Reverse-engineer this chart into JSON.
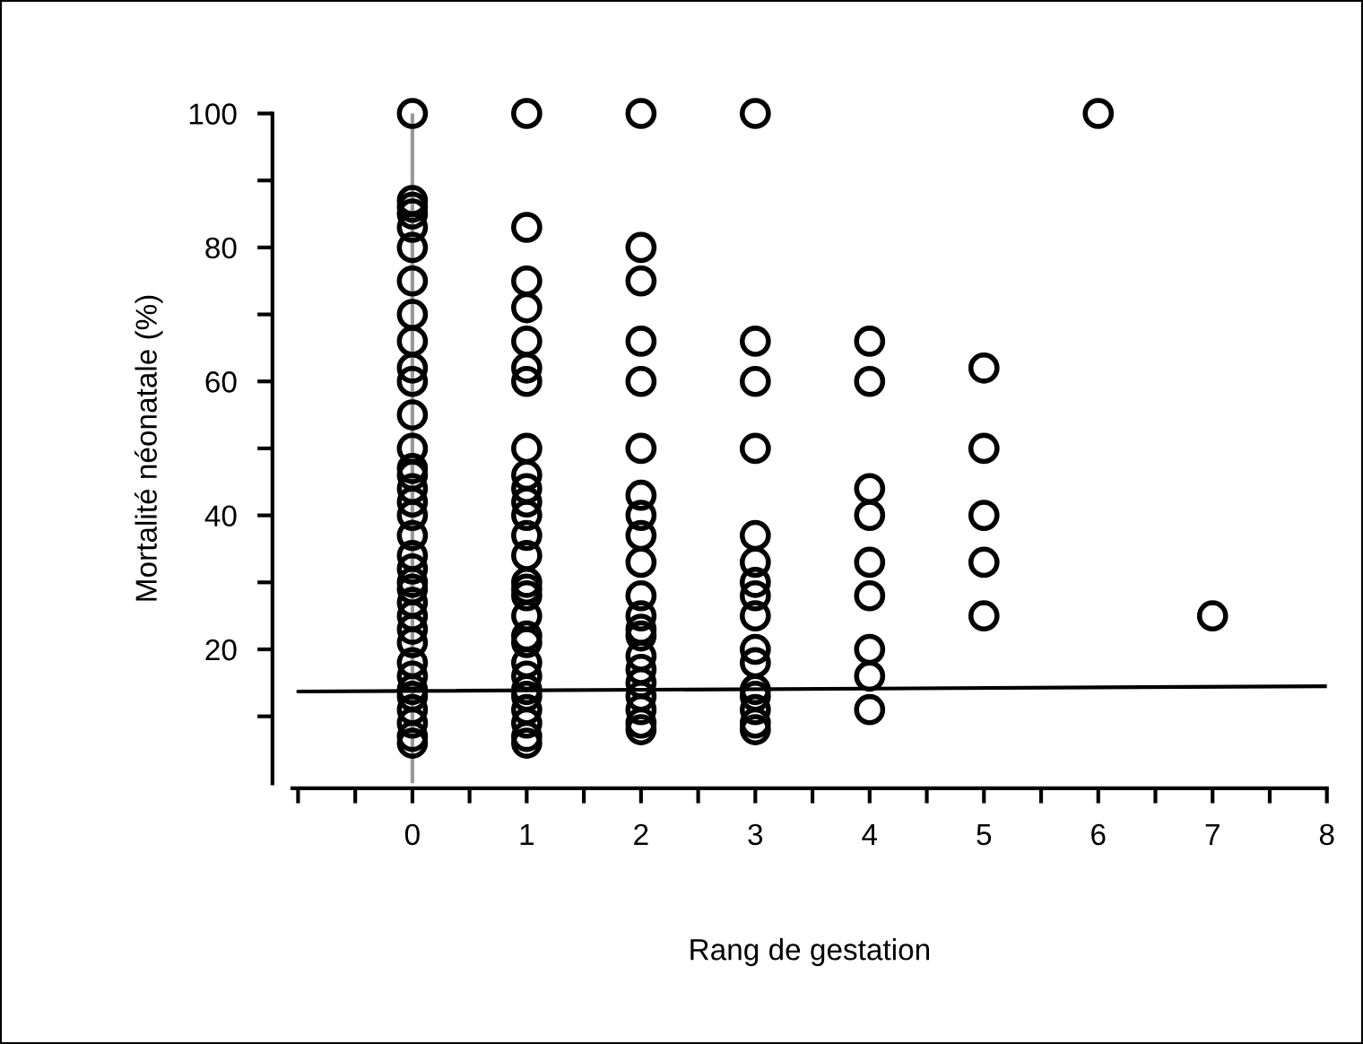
{
  "chart_data": {
    "type": "scatter",
    "xlabel": "Rang de gestation",
    "ylabel": "Mortalité néonatale (%)",
    "xlim": [
      -1.05,
      8
    ],
    "ylim": [
      0,
      100
    ],
    "xticks": [
      {
        "value": -1,
        "label": null
      },
      {
        "value": -0.5,
        "label": null
      },
      0,
      {
        "value": 0.5,
        "label": null
      },
      1,
      {
        "value": 1.5,
        "label": null
      },
      2,
      {
        "value": 2.5,
        "label": null
      },
      3,
      {
        "value": 3.5,
        "label": null
      },
      4,
      {
        "value": 4.5,
        "label": null
      },
      5,
      {
        "value": 5.5,
        "label": null
      },
      6,
      {
        "value": 6.5,
        "label": null
      },
      7,
      {
        "value": 7.5,
        "label": null
      },
      8
    ],
    "yticks": [
      {
        "value": 10,
        "label": null
      },
      20,
      {
        "value": 30,
        "label": null
      },
      40,
      {
        "value": 50,
        "label": null
      },
      60,
      {
        "value": 70,
        "label": null
      },
      80,
      {
        "value": 90,
        "label": null
      },
      100
    ],
    "marker": "circle",
    "grid": false,
    "legend": false,
    "ref_lines": [
      {
        "axis": "x",
        "value": 0,
        "color": "#999999"
      }
    ],
    "series": [
      {
        "color": "#000000",
        "x": [
          0,
          0,
          0,
          0,
          0,
          0,
          0,
          0,
          0,
          0,
          0,
          0,
          0,
          0,
          0,
          0,
          0,
          0,
          0,
          0,
          0,
          0,
          0,
          0,
          0,
          0,
          0,
          0,
          0,
          0,
          0,
          0,
          0,
          0,
          0,
          1,
          1,
          1,
          1,
          1,
          1,
          1,
          1,
          1,
          1,
          1,
          1,
          1,
          1,
          1,
          1,
          1,
          1,
          1,
          1,
          1,
          1,
          1,
          1,
          1,
          1,
          1,
          1,
          2,
          2,
          2,
          2,
          2,
          2,
          2,
          2,
          2,
          2,
          2,
          2,
          2,
          2,
          2,
          2,
          2,
          2,
          2,
          2,
          2,
          3,
          3,
          3,
          3,
          3,
          3,
          3,
          3,
          3,
          3,
          3,
          3,
          3,
          3,
          3,
          3,
          4,
          4,
          4,
          4,
          4,
          4,
          4,
          4,
          4,
          5,
          5,
          5,
          5,
          5,
          6,
          7
        ],
        "values": [
          100,
          87,
          86,
          85,
          83,
          80,
          75,
          70,
          66,
          62,
          60,
          55,
          50,
          47,
          46,
          44,
          42,
          40,
          37,
          34,
          32,
          30,
          29,
          27,
          25,
          23,
          21,
          18,
          16,
          14,
          13,
          11,
          9,
          7,
          6,
          100,
          83,
          75,
          71,
          66,
          62,
          60,
          50,
          46,
          44,
          42,
          40,
          37,
          34,
          30,
          29,
          28,
          25,
          22,
          21,
          18,
          16,
          14,
          13,
          11,
          9,
          7,
          6,
          100,
          80,
          75,
          66,
          60,
          50,
          43,
          40,
          37,
          33,
          28,
          25,
          23,
          22,
          19,
          17,
          15,
          13,
          11,
          9,
          8,
          100,
          66,
          60,
          50,
          37,
          33,
          30,
          28,
          25,
          20,
          18,
          14,
          13,
          11,
          9,
          8,
          66,
          60,
          44,
          40,
          33,
          28,
          20,
          16,
          11,
          62,
          50,
          40,
          33,
          25,
          100,
          25
        ]
      },
      {
        "type": "line",
        "color": "#000000",
        "marker": "none",
        "x": [
          -1,
          8
        ],
        "values": [
          13.7,
          14.5
        ]
      }
    ]
  }
}
